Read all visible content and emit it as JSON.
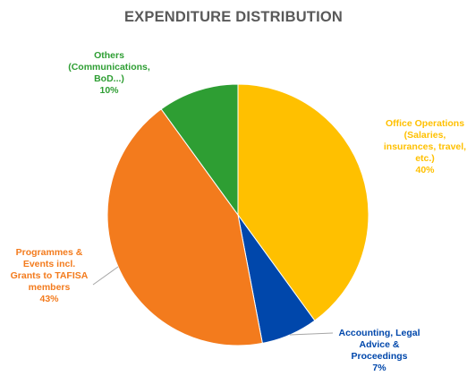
{
  "chart_data": {
    "type": "pie",
    "title": "EXPENDITURE DISTRIBUTION",
    "start_angle_deg": 0,
    "direction": "clockwise",
    "slices": [
      {
        "name": "Office Operations (Salaries, insurances, travel, etc.)",
        "value": 40,
        "value_label": "40%",
        "label_lines": [
          "Office Operations",
          "(Salaries,",
          "insurances, travel,",
          "etc.)"
        ],
        "color": "#FFC000"
      },
      {
        "name": "Accounting, Legal Advice & Proceedings",
        "value": 7,
        "value_label": "7%",
        "label_lines": [
          "Accounting, Legal",
          "Advice &",
          "Proceedings"
        ],
        "color": "#0047AB"
      },
      {
        "name": "Programmes & Events incl. Grants to TAFISA members",
        "value": 43,
        "value_label": "43%",
        "label_lines": [
          "Programmes &",
          "Events incl.",
          "Grants to TAFISA",
          "members"
        ],
        "color": "#F37B1D"
      },
      {
        "name": "Others (Communications, BoD...)",
        "value": 10,
        "value_label": "10%",
        "label_lines": [
          "Others",
          "(Communications,",
          "BoD...)"
        ],
        "color": "#2E9E33"
      }
    ],
    "legend": "none",
    "label_style": "outside labels with leader lines, colored like slices"
  }
}
